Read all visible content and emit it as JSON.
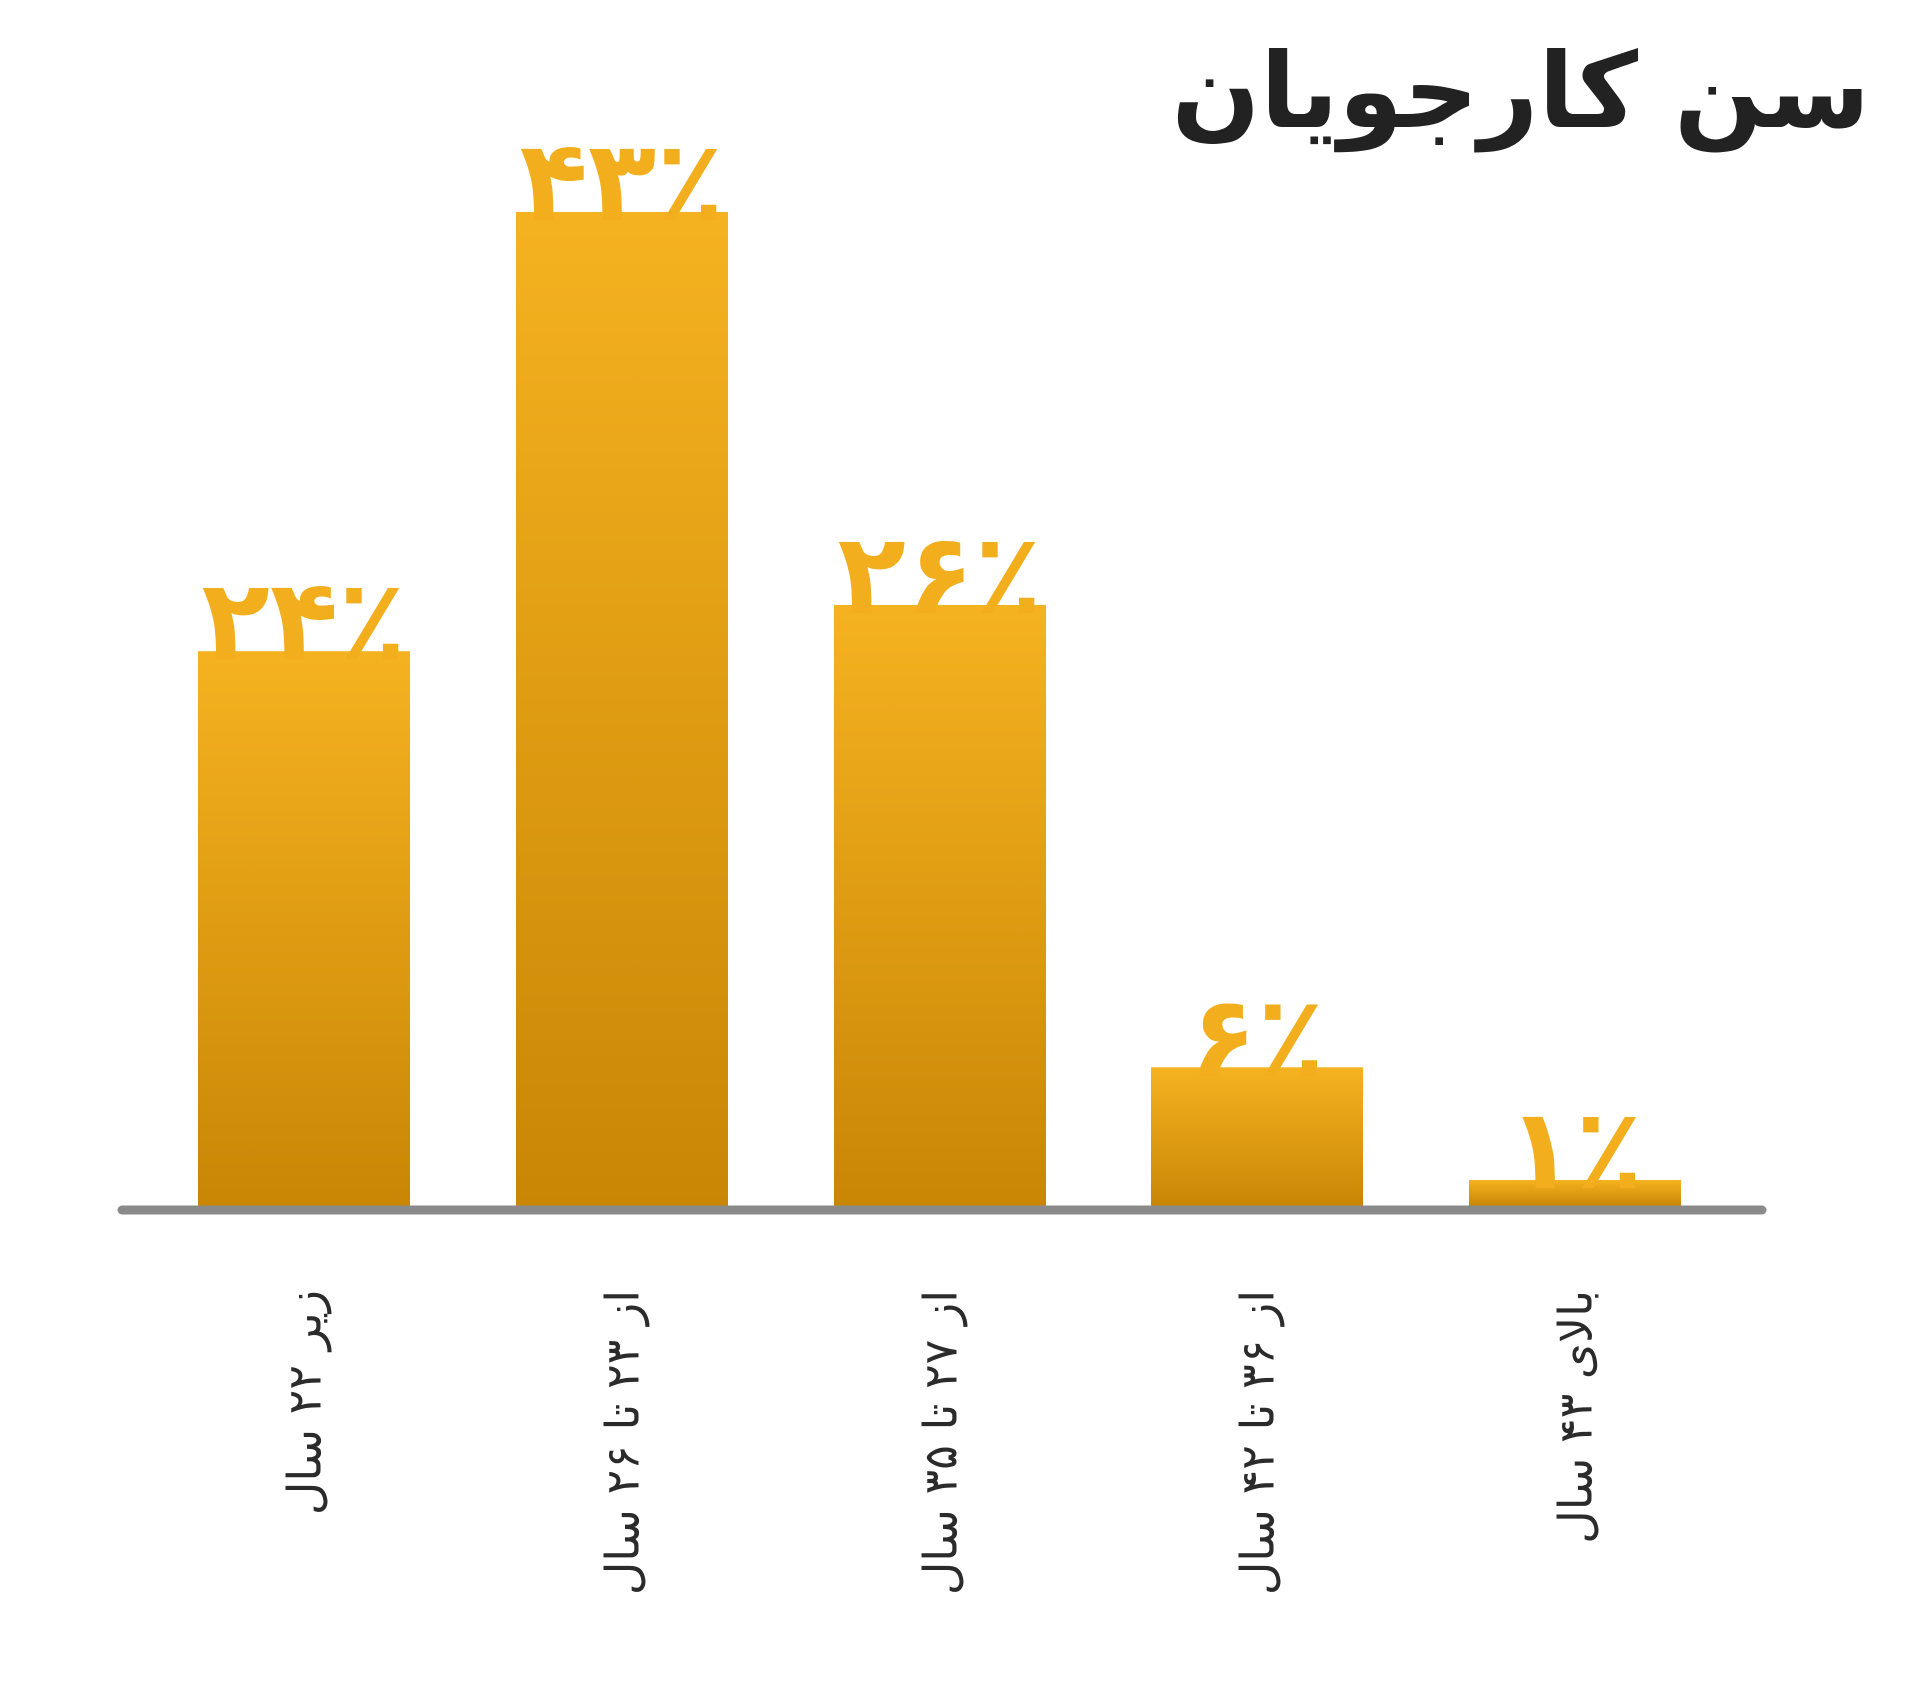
{
  "chart_data": {
    "type": "bar",
    "title": "سن کارجویان",
    "categories": [
      "زیر ۲۲ سال",
      "از ۲۳ تا ۲۶ سال",
      "از ۲۷ تا ۳۵ سال",
      "از ۳۶ تا ۴۲ سال",
      "بالای ۴۳ سال"
    ],
    "values": [
      24,
      43,
      26,
      6,
      1
    ],
    "value_labels": [
      "۲۴٪",
      "۴۳٪",
      "۲۶٪",
      "۶٪",
      "۱٪"
    ],
    "ylim": [
      0,
      43
    ],
    "grid": false,
    "legend": "none",
    "colors": {
      "bar_top": "#F5B220",
      "bar_bottom": "#C98605",
      "value_label": "#F2AE1C",
      "axis": "#8A8A8A",
      "category_label": "#2B2B2B",
      "title": "#222222"
    }
  }
}
